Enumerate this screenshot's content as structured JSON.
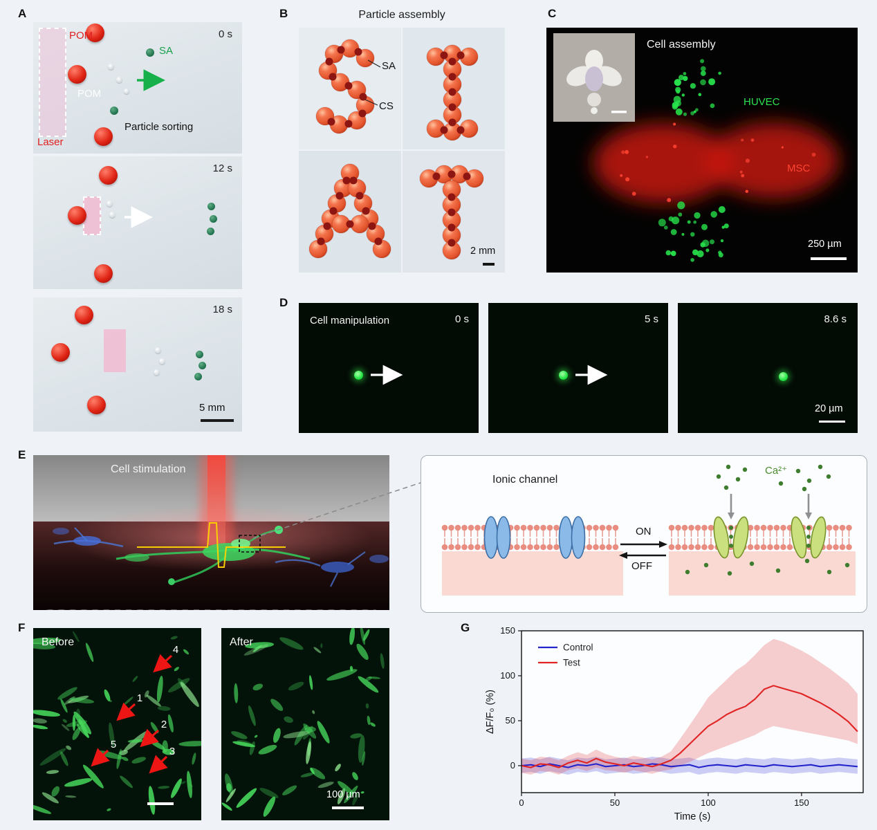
{
  "colors": {
    "page_bg": "#eff3f8",
    "control_blue": "#2323cc",
    "test_red": "#e02424",
    "green_label": "#18a04a",
    "red_label": "#e01f1f"
  },
  "panelA": {
    "label": "A",
    "pom_top": "POM",
    "sa": "SA",
    "pom_mid": "POM",
    "sorting": "Particle sorting",
    "laser": "Laser",
    "time0": "0 s",
    "time1": "12 s",
    "time2": "18 s",
    "scale": "5 mm"
  },
  "panelB": {
    "label": "B",
    "title": "Particle assembly",
    "sa": "SA",
    "cs": "CS",
    "scale": "2 mm",
    "letters_depicted": [
      "S",
      "I",
      "A",
      "T"
    ]
  },
  "panelC": {
    "label": "C",
    "title": "Cell assembly",
    "huvec": "HUVEC",
    "msc": "MSC",
    "scale": "250 µm"
  },
  "panelD": {
    "label": "D",
    "title": "Cell manipulation",
    "time0": "0 s",
    "time1": "5 s",
    "time2": "8.6 s",
    "scale": "20 µm"
  },
  "panelE": {
    "label": "E",
    "title": "Cell stimulation",
    "box_title": "Ionic channel",
    "ca": "Ca²⁺",
    "on": "ON",
    "off": "OFF"
  },
  "panelF": {
    "label": "F",
    "before": "Before",
    "after": "After",
    "markers": [
      "1",
      "2",
      "3",
      "4",
      "5"
    ],
    "scale": "100 µm"
  },
  "panelG": {
    "label": "G"
  },
  "chart_data": {
    "type": "line",
    "title": "",
    "xlabel": "Time (s)",
    "ylabel": "ΔF/F₀ (%)",
    "xlim": [
      0,
      183
    ],
    "ylim": [
      -30,
      150
    ],
    "xticks": [
      0,
      50,
      100,
      150
    ],
    "yticks": [
      0,
      50,
      100,
      150
    ],
    "legend_position": "top-left",
    "grid": false,
    "x": [
      0,
      5,
      10,
      15,
      20,
      25,
      30,
      35,
      40,
      45,
      50,
      55,
      60,
      65,
      70,
      75,
      80,
      85,
      90,
      95,
      100,
      105,
      110,
      115,
      120,
      125,
      130,
      135,
      140,
      145,
      150,
      155,
      160,
      165,
      170,
      175,
      180
    ],
    "series": [
      {
        "name": "Control",
        "color": "#2323cc",
        "band_halfwidth": 8,
        "values": [
          0,
          1,
          -1,
          2,
          0,
          -2,
          1,
          0,
          2,
          -1,
          0,
          1,
          -1,
          0,
          2,
          1,
          -1,
          0,
          1,
          -2,
          0,
          1,
          0,
          -1,
          1,
          0,
          -1,
          1,
          0,
          -1,
          0,
          1,
          -1,
          0,
          1,
          0,
          -1
        ]
      },
      {
        "name": "Test",
        "color": "#e02424",
        "values": [
          0,
          -2,
          2,
          1,
          -2,
          3,
          6,
          3,
          8,
          4,
          2,
          0,
          3,
          1,
          -1,
          2,
          6,
          14,
          24,
          34,
          44,
          50,
          57,
          62,
          66,
          74,
          85,
          89,
          86,
          83,
          80,
          75,
          70,
          64,
          57,
          49,
          38
        ],
        "band_upper": [
          8,
          6,
          10,
          9,
          6,
          11,
          15,
          12,
          18,
          13,
          10,
          8,
          11,
          9,
          7,
          10,
          16,
          30,
          45,
          60,
          76,
          86,
          96,
          106,
          113,
          123,
          134,
          141,
          138,
          133,
          128,
          122,
          115,
          108,
          100,
          92,
          80
        ],
        "band_lower": [
          -8,
          -10,
          -6,
          -7,
          -10,
          -5,
          -3,
          -6,
          -2,
          -5,
          -6,
          -8,
          -5,
          -7,
          -9,
          -6,
          -4,
          0,
          4,
          9,
          14,
          18,
          22,
          26,
          30,
          34,
          40,
          44,
          42,
          40,
          38,
          36,
          34,
          32,
          30,
          28,
          24
        ]
      }
    ]
  }
}
